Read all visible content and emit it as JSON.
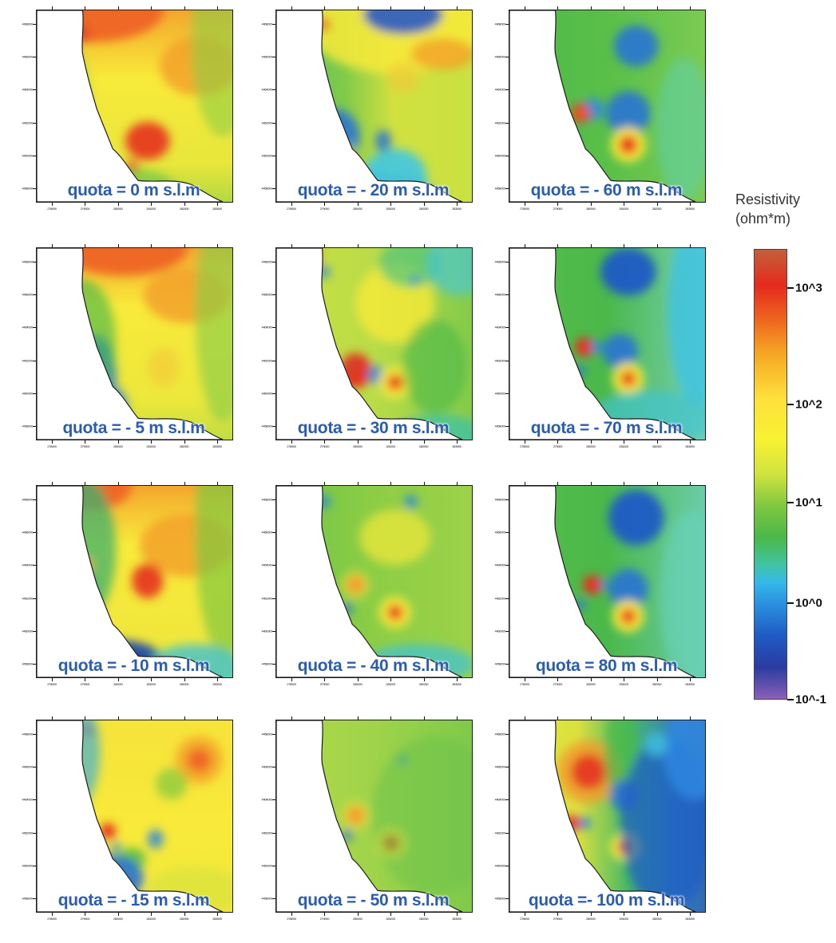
{
  "panels": [
    {
      "label": "quota = 0 m s.l.m"
    },
    {
      "label": "quota = - 20 m s.l.m"
    },
    {
      "label": "quota = - 60 m s.l.m"
    },
    {
      "label": "quota = - 5 m s.l.m"
    },
    {
      "label": "quota = - 30 m s.l.m"
    },
    {
      "label": "quota = - 70 m s.l.m"
    },
    {
      "label": "quota = - 10 m s.l.m"
    },
    {
      "label": "quota = - 40 m s.l.m"
    },
    {
      "label": "quota = 80 m s.l.m"
    },
    {
      "label": "quota = - 15 m s.l.m"
    },
    {
      "label": "quota = - 50 m s.l.m"
    },
    {
      "label": "quota =- 100 m s.l.m"
    }
  ],
  "legend": {
    "title_line1": "Resistivity",
    "title_line2": "(ohm*m)",
    "ticks": [
      "10^3",
      "10^2",
      "10^1",
      "10^0",
      "10^-1"
    ]
  }
}
